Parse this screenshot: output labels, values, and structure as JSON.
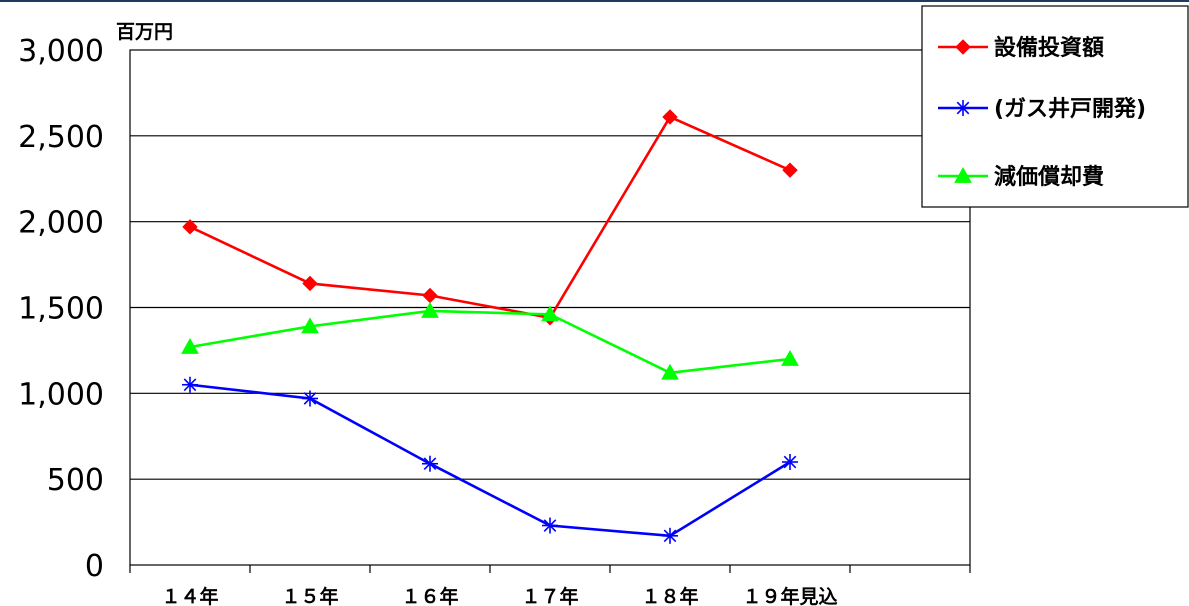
{
  "chart_data": {
    "type": "line",
    "unit_label": "百万円",
    "categories": [
      "１４年",
      "１５年",
      "１６年",
      "１７年",
      "１８年",
      "１９年見込"
    ],
    "ylim": [
      0,
      3000
    ],
    "yticks": [
      0,
      500,
      1000,
      1500,
      2000,
      2500,
      3000
    ],
    "ytick_labels": [
      "0",
      "500",
      "1,000",
      "1,500",
      "2,000",
      "2,500",
      "3,000"
    ],
    "grid": true,
    "legend_position": "top-right",
    "series": [
      {
        "name": "設備投資額",
        "color": "#ff0000",
        "marker": "diamond",
        "values": [
          1970,
          1640,
          1570,
          1440,
          2610,
          2300
        ]
      },
      {
        "name": "(ガス井戸開発)",
        "color": "#0000ff",
        "marker": "asterisk",
        "values": [
          1050,
          970,
          590,
          230,
          170,
          600
        ]
      },
      {
        "name": "減価償却費",
        "color": "#00ff00",
        "marker": "triangle",
        "values": [
          1270,
          1390,
          1480,
          1460,
          1120,
          1200
        ]
      }
    ]
  }
}
